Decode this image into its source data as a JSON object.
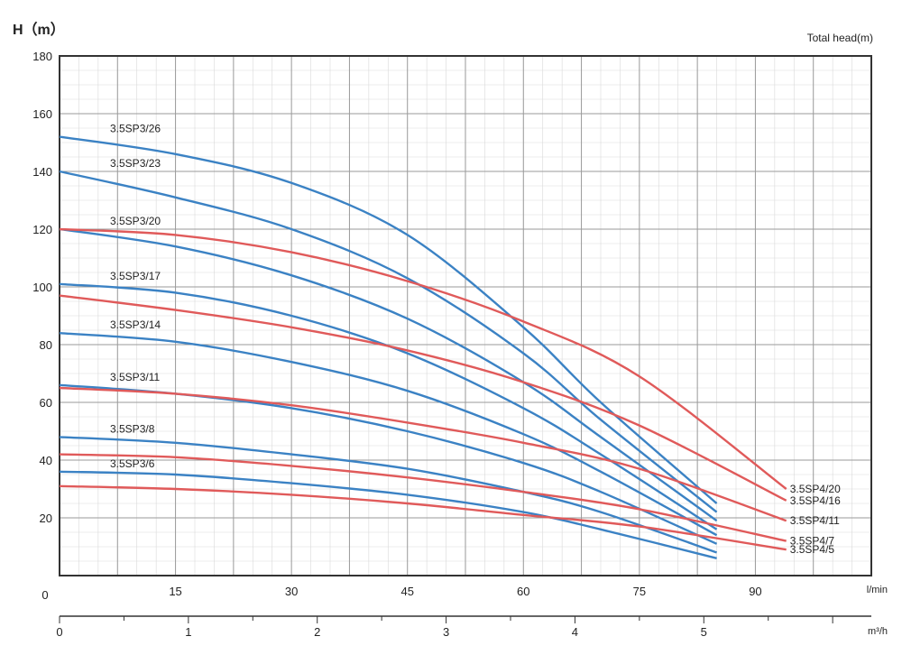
{
  "chart_data": {
    "type": "line",
    "y_axis_title": "H（m）",
    "top_right_label": "Total head(m)",
    "x_unit_lmin": "l/min",
    "x_unit_m3h": "m³/h",
    "origin_label": "0",
    "x_range_lmin": [
      0,
      105
    ],
    "y_range": [
      0,
      180
    ],
    "x_ticks_lmin": [
      15,
      30,
      45,
      60,
      75,
      90
    ],
    "x_ticks_m3h": [
      0,
      1,
      2,
      3,
      4,
      5
    ],
    "y_ticks": [
      20,
      40,
      60,
      80,
      100,
      120,
      140,
      160,
      180
    ],
    "grid": true,
    "colors": {
      "3.5SP3": "#3b82c4",
      "3.5SP4": "#e05a5a"
    },
    "series": [
      {
        "name": "3.5SP3/26",
        "family": "3.5SP3",
        "x": [
          0,
          15,
          30,
          45,
          60,
          70,
          85
        ],
        "y": [
          152,
          146,
          136,
          118,
          86,
          60,
          25
        ]
      },
      {
        "name": "3.5SP3/23",
        "family": "3.5SP3",
        "x": [
          0,
          15,
          30,
          45,
          60,
          70,
          85
        ],
        "y": [
          140,
          131,
          120,
          103,
          77,
          54,
          22
        ]
      },
      {
        "name": "3.5SP3/20",
        "family": "3.5SP3",
        "x": [
          0,
          15,
          30,
          45,
          60,
          70,
          85
        ],
        "y": [
          120,
          114,
          104,
          89,
          67,
          48,
          19
        ]
      },
      {
        "name": "3.5SP3/17",
        "family": "3.5SP3",
        "x": [
          0,
          15,
          30,
          45,
          60,
          70,
          85
        ],
        "y": [
          101,
          98,
          90,
          77,
          58,
          42,
          16
        ]
      },
      {
        "name": "3.5SP3/14",
        "family": "3.5SP3",
        "x": [
          0,
          15,
          30,
          45,
          60,
          70,
          85
        ],
        "y": [
          84,
          81,
          74,
          64,
          49,
          36,
          14
        ]
      },
      {
        "name": "3.5SP3/11",
        "family": "3.5SP3",
        "x": [
          0,
          15,
          30,
          45,
          60,
          70,
          85
        ],
        "y": [
          66,
          63,
          58,
          50,
          39,
          29,
          11
        ]
      },
      {
        "name": "3.5SP3/8",
        "family": "3.5SP3",
        "x": [
          0,
          15,
          30,
          45,
          60,
          70,
          85
        ],
        "y": [
          48,
          46,
          42,
          37,
          29,
          22,
          8
        ]
      },
      {
        "name": "3.5SP3/6",
        "family": "3.5SP3",
        "x": [
          0,
          15,
          30,
          45,
          60,
          70,
          85
        ],
        "y": [
          36,
          35,
          32,
          28,
          22,
          16,
          6
        ]
      },
      {
        "name": "3.5SP4/20",
        "family": "3.5SP4",
        "x": [
          0,
          15,
          30,
          45,
          60,
          75,
          94
        ],
        "y": [
          120,
          118,
          112,
          102,
          88,
          69,
          30
        ]
      },
      {
        "name": "3.5SP4/16",
        "family": "3.5SP4",
        "x": [
          0,
          15,
          30,
          45,
          60,
          75,
          94
        ],
        "y": [
          97,
          92,
          86,
          78,
          67,
          52,
          26
        ]
      },
      {
        "name": "3.5SP4/11",
        "family": "3.5SP4",
        "x": [
          0,
          15,
          30,
          45,
          60,
          75,
          94
        ],
        "y": [
          65,
          63,
          59,
          53,
          46,
          37,
          19
        ]
      },
      {
        "name": "3.5SP4/7",
        "family": "3.5SP4",
        "x": [
          0,
          15,
          30,
          45,
          60,
          75,
          94
        ],
        "y": [
          42,
          41,
          38,
          34,
          29,
          23,
          12
        ]
      },
      {
        "name": "3.5SP4/5",
        "family": "3.5SP4",
        "x": [
          0,
          15,
          30,
          45,
          60,
          75,
          94
        ],
        "y": [
          31,
          30,
          28,
          25,
          21,
          17,
          9
        ]
      }
    ]
  }
}
